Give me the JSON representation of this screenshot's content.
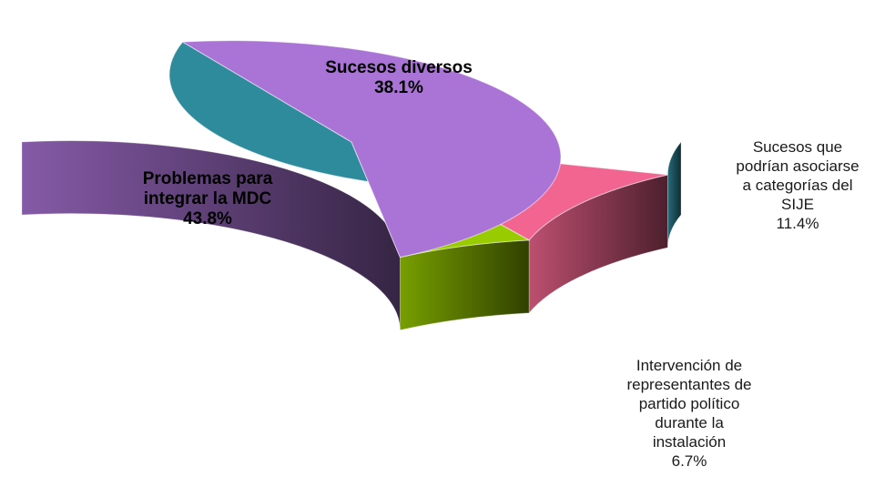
{
  "chart_data": {
    "type": "pie",
    "style": "3d",
    "slices": [
      {
        "name": "Sucesos diversos",
        "value": 38.1,
        "value_label": "38.1%",
        "label_lines": [
          "Sucesos diversos"
        ],
        "color": "#2E8B9C",
        "label_position": "inside"
      },
      {
        "name": "Sucesos que podrían asociarse a categorías del SIJE",
        "value": 11.4,
        "value_label": "11.4%",
        "label_lines": [
          "Sucesos que",
          "podrían asociarse",
          "a categorías del",
          "SIJE"
        ],
        "color": "#F26590",
        "label_position": "outside-right"
      },
      {
        "name": "Intervención de representantes de partido político durante la instalación",
        "value": 6.7,
        "value_label": "6.7%",
        "label_lines": [
          "Intervención de",
          "representantes de",
          "partido político",
          "durante la",
          "instalación"
        ],
        "color": "#99CC00",
        "label_position": "outside-bottom-right"
      },
      {
        "name": "Problemas para integrar la MDC",
        "value": 43.8,
        "value_label": "43.8%",
        "label_lines": [
          "Problemas para",
          "integrar la MDC"
        ],
        "color": "#AA73D6",
        "label_position": "inside"
      }
    ],
    "legend": "none"
  }
}
